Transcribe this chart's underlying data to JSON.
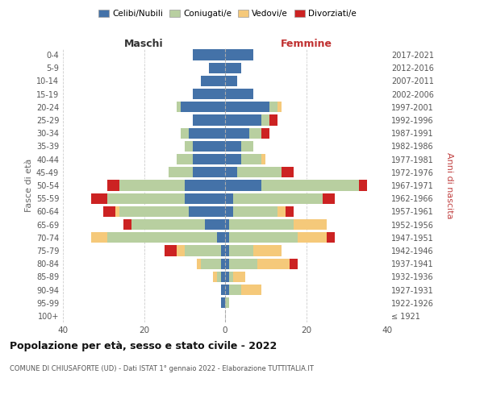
{
  "age_groups": [
    "100+",
    "95-99",
    "90-94",
    "85-89",
    "80-84",
    "75-79",
    "70-74",
    "65-69",
    "60-64",
    "55-59",
    "50-54",
    "45-49",
    "40-44",
    "35-39",
    "30-34",
    "25-29",
    "20-24",
    "15-19",
    "10-14",
    "5-9",
    "0-4"
  ],
  "birth_years": [
    "≤ 1921",
    "1922-1926",
    "1927-1931",
    "1932-1936",
    "1937-1941",
    "1942-1946",
    "1947-1951",
    "1952-1956",
    "1957-1961",
    "1962-1966",
    "1967-1971",
    "1972-1976",
    "1977-1981",
    "1982-1986",
    "1987-1991",
    "1992-1996",
    "1997-2001",
    "2002-2006",
    "2007-2011",
    "2012-2016",
    "2017-2021"
  ],
  "males": {
    "celibe": [
      0,
      1,
      1,
      1,
      1,
      1,
      2,
      5,
      9,
      10,
      10,
      8,
      8,
      8,
      9,
      8,
      11,
      8,
      6,
      4,
      8
    ],
    "coniugato": [
      0,
      0,
      0,
      1,
      5,
      9,
      27,
      18,
      17,
      19,
      16,
      6,
      4,
      2,
      2,
      0,
      1,
      0,
      0,
      0,
      0
    ],
    "vedovo": [
      0,
      0,
      0,
      1,
      1,
      2,
      4,
      0,
      1,
      0,
      0,
      0,
      0,
      0,
      0,
      0,
      0,
      0,
      0,
      0,
      0
    ],
    "divorziato": [
      0,
      0,
      0,
      0,
      0,
      3,
      0,
      2,
      3,
      4,
      3,
      0,
      0,
      0,
      0,
      0,
      0,
      0,
      0,
      0,
      0
    ]
  },
  "females": {
    "nubile": [
      0,
      0,
      1,
      1,
      1,
      1,
      1,
      1,
      2,
      2,
      9,
      3,
      4,
      4,
      6,
      9,
      11,
      7,
      3,
      4,
      7
    ],
    "coniugata": [
      0,
      1,
      3,
      1,
      7,
      6,
      17,
      16,
      11,
      22,
      24,
      11,
      5,
      3,
      3,
      2,
      2,
      0,
      0,
      0,
      0
    ],
    "vedova": [
      0,
      0,
      5,
      3,
      8,
      7,
      7,
      8,
      2,
      0,
      0,
      0,
      1,
      0,
      0,
      0,
      1,
      0,
      0,
      0,
      0
    ],
    "divorziata": [
      0,
      0,
      0,
      0,
      2,
      0,
      2,
      0,
      2,
      3,
      2,
      3,
      0,
      0,
      2,
      2,
      0,
      0,
      0,
      0,
      0
    ]
  },
  "colors": {
    "celibe_nubile": "#4472a8",
    "coniugato_a": "#b8cfa0",
    "vedovo_a": "#f5c97a",
    "divorziato_a": "#cc2222"
  },
  "title": "Popolazione per età, sesso e stato civile - 2022",
  "subtitle": "COMUNE DI CHIUSAFORTE (UD) - Dati ISTAT 1° gennaio 2022 - Elaborazione TUTTITALIA.IT",
  "ylabel_left": "Fasce di età",
  "ylabel_right": "Anni di nascita",
  "xlabel_left": "Maschi",
  "xlabel_right": "Femmine",
  "xlim": 40,
  "legend_labels": [
    "Celibi/Nubili",
    "Coniugati/e",
    "Vedovi/e",
    "Divorziati/e"
  ],
  "background_color": "#ffffff",
  "grid_color": "#cccccc"
}
